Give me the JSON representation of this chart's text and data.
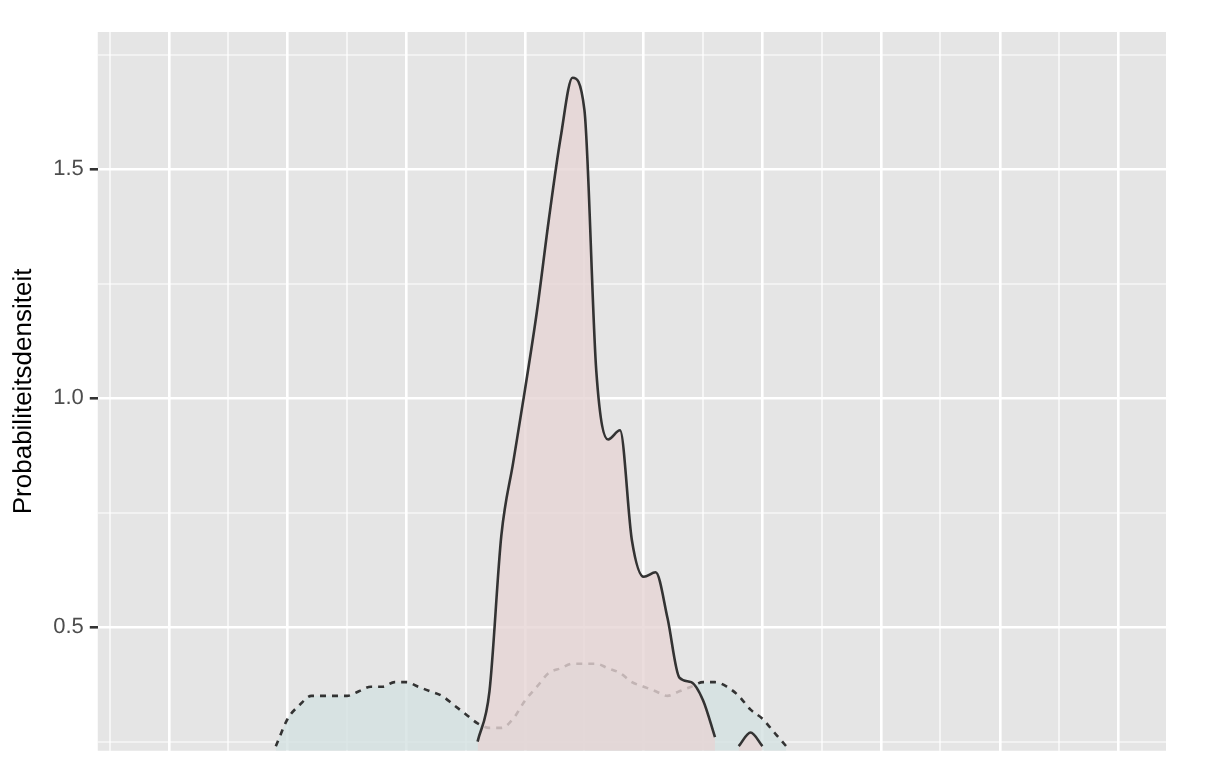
{
  "chart_data": {
    "type": "area",
    "ylabel": "Probabiliteitsdensiteit",
    "tick_labels": "y",
    "grid": true,
    "legend": false,
    "categories": [
      null,
      null,
      null,
      null,
      null,
      null,
      null,
      null,
      null,
      null,
      null,
      null,
      null,
      null,
      null,
      null,
      null,
      null,
      null,
      null,
      null,
      null,
      null,
      null,
      null,
      null,
      null,
      null,
      null,
      null,
      null,
      null,
      null,
      null,
      null,
      null,
      null,
      null,
      null,
      null,
      null,
      null,
      null,
      null,
      null,
      null,
      null,
      null,
      null,
      null,
      null,
      null,
      null,
      null,
      null,
      null,
      null,
      null,
      null,
      null,
      null,
      null,
      null,
      null,
      null,
      null,
      null,
      null,
      null,
      null,
      null,
      null,
      null,
      null,
      null,
      null,
      null,
      null,
      null,
      null,
      null,
      null,
      null,
      null,
      null,
      null,
      null,
      null,
      null,
      null,
      null
    ],
    "ylim": [
      0.23,
      1.8
    ],
    "yticks": [
      {
        "value": 0.25,
        "label": null
      },
      {
        "value": 0.5,
        "label": "0.5"
      },
      {
        "value": 0.75,
        "label": null
      },
      {
        "value": 1,
        "label": "1.0"
      },
      {
        "value": 1.25,
        "label": null
      },
      {
        "value": 1.5,
        "label": "1.5"
      },
      {
        "value": 1.75,
        "label": null
      }
    ],
    "series": [
      {
        "color": "#e6d4d4",
        "line_style": "solid",
        "values": [
          null,
          null,
          null,
          null,
          null,
          null,
          null,
          null,
          null,
          null,
          null,
          null,
          null,
          null,
          null,
          null,
          null,
          null,
          null,
          null,
          null,
          null,
          null,
          null,
          null,
          null,
          null,
          null,
          null,
          null,
          null,
          null,
          0.25,
          0.36,
          0.7,
          0.86,
          1.02,
          1.19,
          1.39,
          1.57,
          1.7,
          1.63,
          1.06,
          0.91,
          0.93,
          0.69,
          0.61,
          0.62,
          0.52,
          0.39,
          0.38,
          0.34,
          0.26,
          null,
          0.24,
          0.27,
          0.24,
          null,
          null,
          null,
          null,
          null,
          null,
          null,
          null,
          null,
          null,
          null,
          null,
          null,
          null,
          null,
          null,
          null,
          null,
          null,
          null,
          null,
          null,
          null,
          null,
          null,
          null,
          null,
          null,
          null,
          null,
          null,
          null,
          null,
          null
        ]
      },
      {
        "color": "#d3e1e1",
        "line_style": "dashed",
        "values": [
          null,
          null,
          null,
          null,
          null,
          null,
          null,
          null,
          null,
          null,
          null,
          null,
          null,
          null,
          null,
          0.24,
          0.3,
          0.33,
          0.35,
          0.35,
          0.35,
          0.35,
          0.36,
          0.37,
          0.37,
          0.38,
          0.38,
          0.37,
          0.36,
          0.35,
          0.33,
          0.31,
          0.29,
          0.28,
          0.28,
          0.3,
          0.34,
          0.37,
          0.4,
          0.41,
          0.42,
          0.42,
          0.42,
          0.41,
          0.4,
          0.38,
          0.37,
          0.36,
          0.35,
          0.36,
          0.37,
          0.38,
          0.38,
          0.37,
          0.35,
          0.32,
          0.3,
          0.27,
          0.24,
          null,
          null,
          null,
          null,
          null,
          null,
          null,
          null,
          null,
          null,
          null,
          null,
          null,
          null,
          null,
          null,
          null,
          null,
          null,
          null,
          null,
          null,
          null,
          null,
          null,
          null,
          null,
          null,
          null,
          null,
          null,
          null
        ]
      }
    ]
  }
}
